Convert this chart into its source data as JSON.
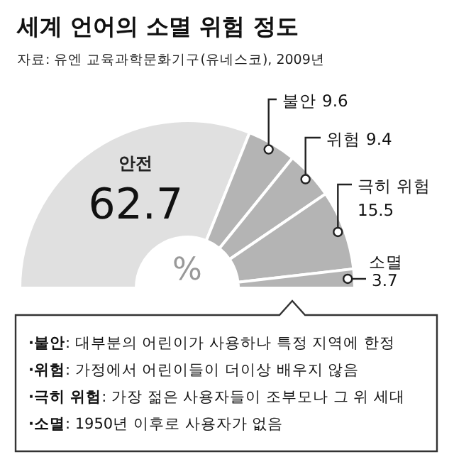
{
  "chart_data": {
    "type": "donut",
    "title": "세계 언어의 소멸 위험 정도",
    "subtitle": "자료: 유엔 교육과학문화기구(유네스코), 2009년",
    "categories": [
      "안전",
      "불안",
      "위험",
      "극히 위험",
      "소멸"
    ],
    "values": [
      62.7,
      9.6,
      9.4,
      15.5,
      3.7
    ],
    "colors": [
      "#e0e0e0",
      "#b4b4b4",
      "#b4b4b4",
      "#b4b4b4",
      "#b4b4b4"
    ],
    "data_labels": true,
    "annotations": [
      "%",
      "·불안: 대부분의 어린이가 사용하나 특정 지역에 한정",
      "·위험: 가정에서 어린이들이 더이상 배우지 않음",
      "·극히 위험: 가장 젊은 사용자들이 조부모나 그 위 세대",
      "·소멸: 1950년 이후로 사용자가 없음"
    ]
  }
}
